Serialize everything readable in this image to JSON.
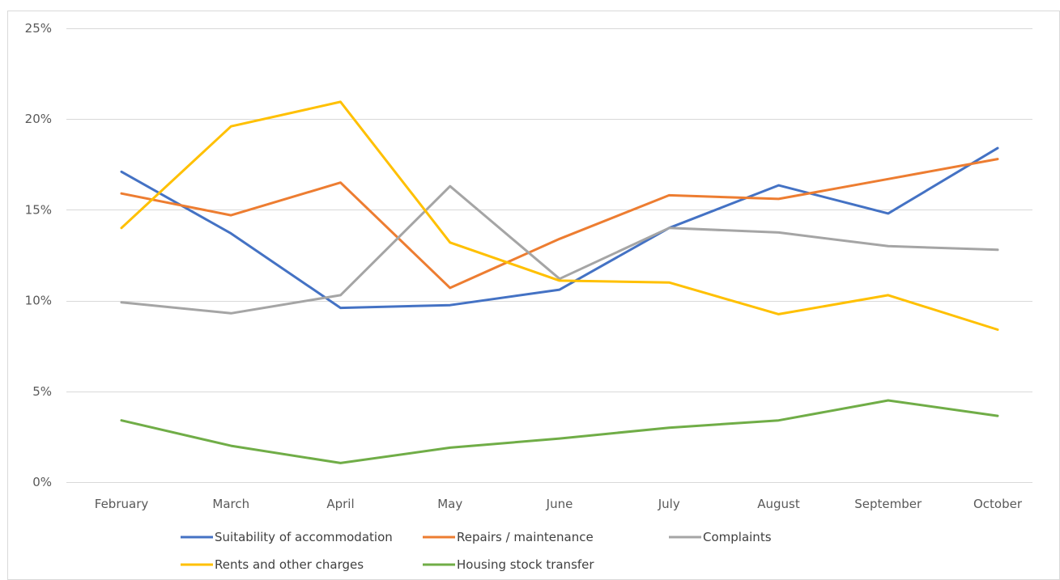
{
  "chart_data": {
    "type": "line",
    "title": "",
    "xlabel": "",
    "ylabel": "",
    "categories": [
      "February",
      "March",
      "April",
      "May",
      "June",
      "July",
      "August",
      "September",
      "October"
    ],
    "y_ticks": [
      "0%",
      "5%",
      "10%",
      "15%",
      "20%",
      "25%"
    ],
    "y_tick_values": [
      0,
      5,
      10,
      15,
      20,
      25
    ],
    "ylim": [
      0,
      25
    ],
    "grid": true,
    "legend_position": "bottom",
    "series": [
      {
        "name": "Suitability of accommodation",
        "color": "#4472C4",
        "values": [
          17.1,
          13.7,
          9.6,
          9.75,
          10.6,
          14.0,
          16.35,
          14.8,
          18.4
        ]
      },
      {
        "name": "Repairs / maintenance",
        "color": "#ED7D31",
        "values": [
          15.9,
          14.7,
          16.5,
          10.7,
          13.4,
          15.8,
          15.6,
          16.7,
          17.8
        ]
      },
      {
        "name": "Complaints",
        "color": "#A5A5A5",
        "values": [
          9.9,
          9.3,
          10.3,
          16.3,
          11.2,
          14.0,
          13.75,
          13.0,
          12.8
        ]
      },
      {
        "name": "Rents and other charges",
        "color": "#FFC000",
        "values": [
          14.0,
          19.6,
          20.95,
          13.2,
          11.1,
          11.0,
          9.25,
          10.3,
          8.4
        ]
      },
      {
        "name": "Housing stock transfer",
        "color": "#70AD47",
        "values": [
          3.4,
          2.0,
          1.05,
          1.9,
          2.4,
          3.0,
          3.4,
          4.5,
          3.65
        ]
      }
    ]
  }
}
